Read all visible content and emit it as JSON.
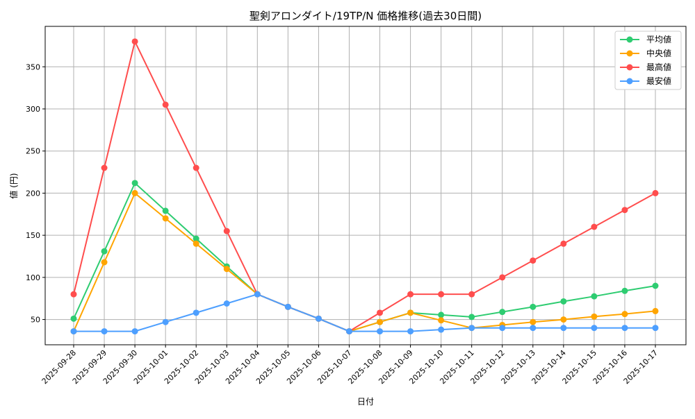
{
  "chart_data": {
    "type": "line",
    "title": "聖剣アロンダイト/19TP/N 価格推移(過去30日間)",
    "xlabel": "日付",
    "ylabel": "値 (円)",
    "ylim": [
      20,
      398
    ],
    "yticks": [
      50,
      100,
      150,
      200,
      250,
      300,
      350
    ],
    "grid": true,
    "legend_position": "top-right",
    "categories": [
      "2025-09-28",
      "2025-09-29",
      "2025-09-30",
      "2025-10-01",
      "2025-10-02",
      "2025-10-03",
      "2025-10-04",
      "2025-10-05",
      "2025-10-06",
      "2025-10-07",
      "2025-10-08",
      "2025-10-09",
      "2025-10-10",
      "2025-10-11",
      "2025-10-12",
      "2025-10-13",
      "2025-10-14",
      "2025-10-15",
      "2025-10-16",
      "2025-10-17"
    ],
    "series": [
      {
        "name": "平均値",
        "color": "#2ecc71",
        "values": [
          51,
          131,
          212,
          179,
          146,
          113,
          80,
          65,
          51,
          36,
          47,
          58,
          55.5,
          53,
          59,
          65,
          71.5,
          77.5,
          84,
          90
        ]
      },
      {
        "name": "中央値",
        "color": "#ffa500",
        "values": [
          36,
          118,
          200,
          170,
          140,
          110,
          80,
          65,
          51,
          36,
          47,
          58,
          49,
          40,
          43.5,
          47,
          50,
          53.5,
          56.5,
          60
        ]
      },
      {
        "name": "最高値",
        "color": "#ff4d4d",
        "values": [
          80,
          230,
          380,
          305,
          230,
          155,
          80,
          65,
          51,
          36,
          58,
          80,
          80,
          80,
          100,
          120,
          140,
          160,
          180,
          200
        ]
      },
      {
        "name": "最安値",
        "color": "#4d9fff",
        "values": [
          36,
          36,
          36,
          47,
          58,
          69,
          80,
          65,
          51,
          36,
          36,
          36,
          38,
          40,
          40,
          40,
          40,
          40,
          40,
          40
        ]
      }
    ]
  }
}
